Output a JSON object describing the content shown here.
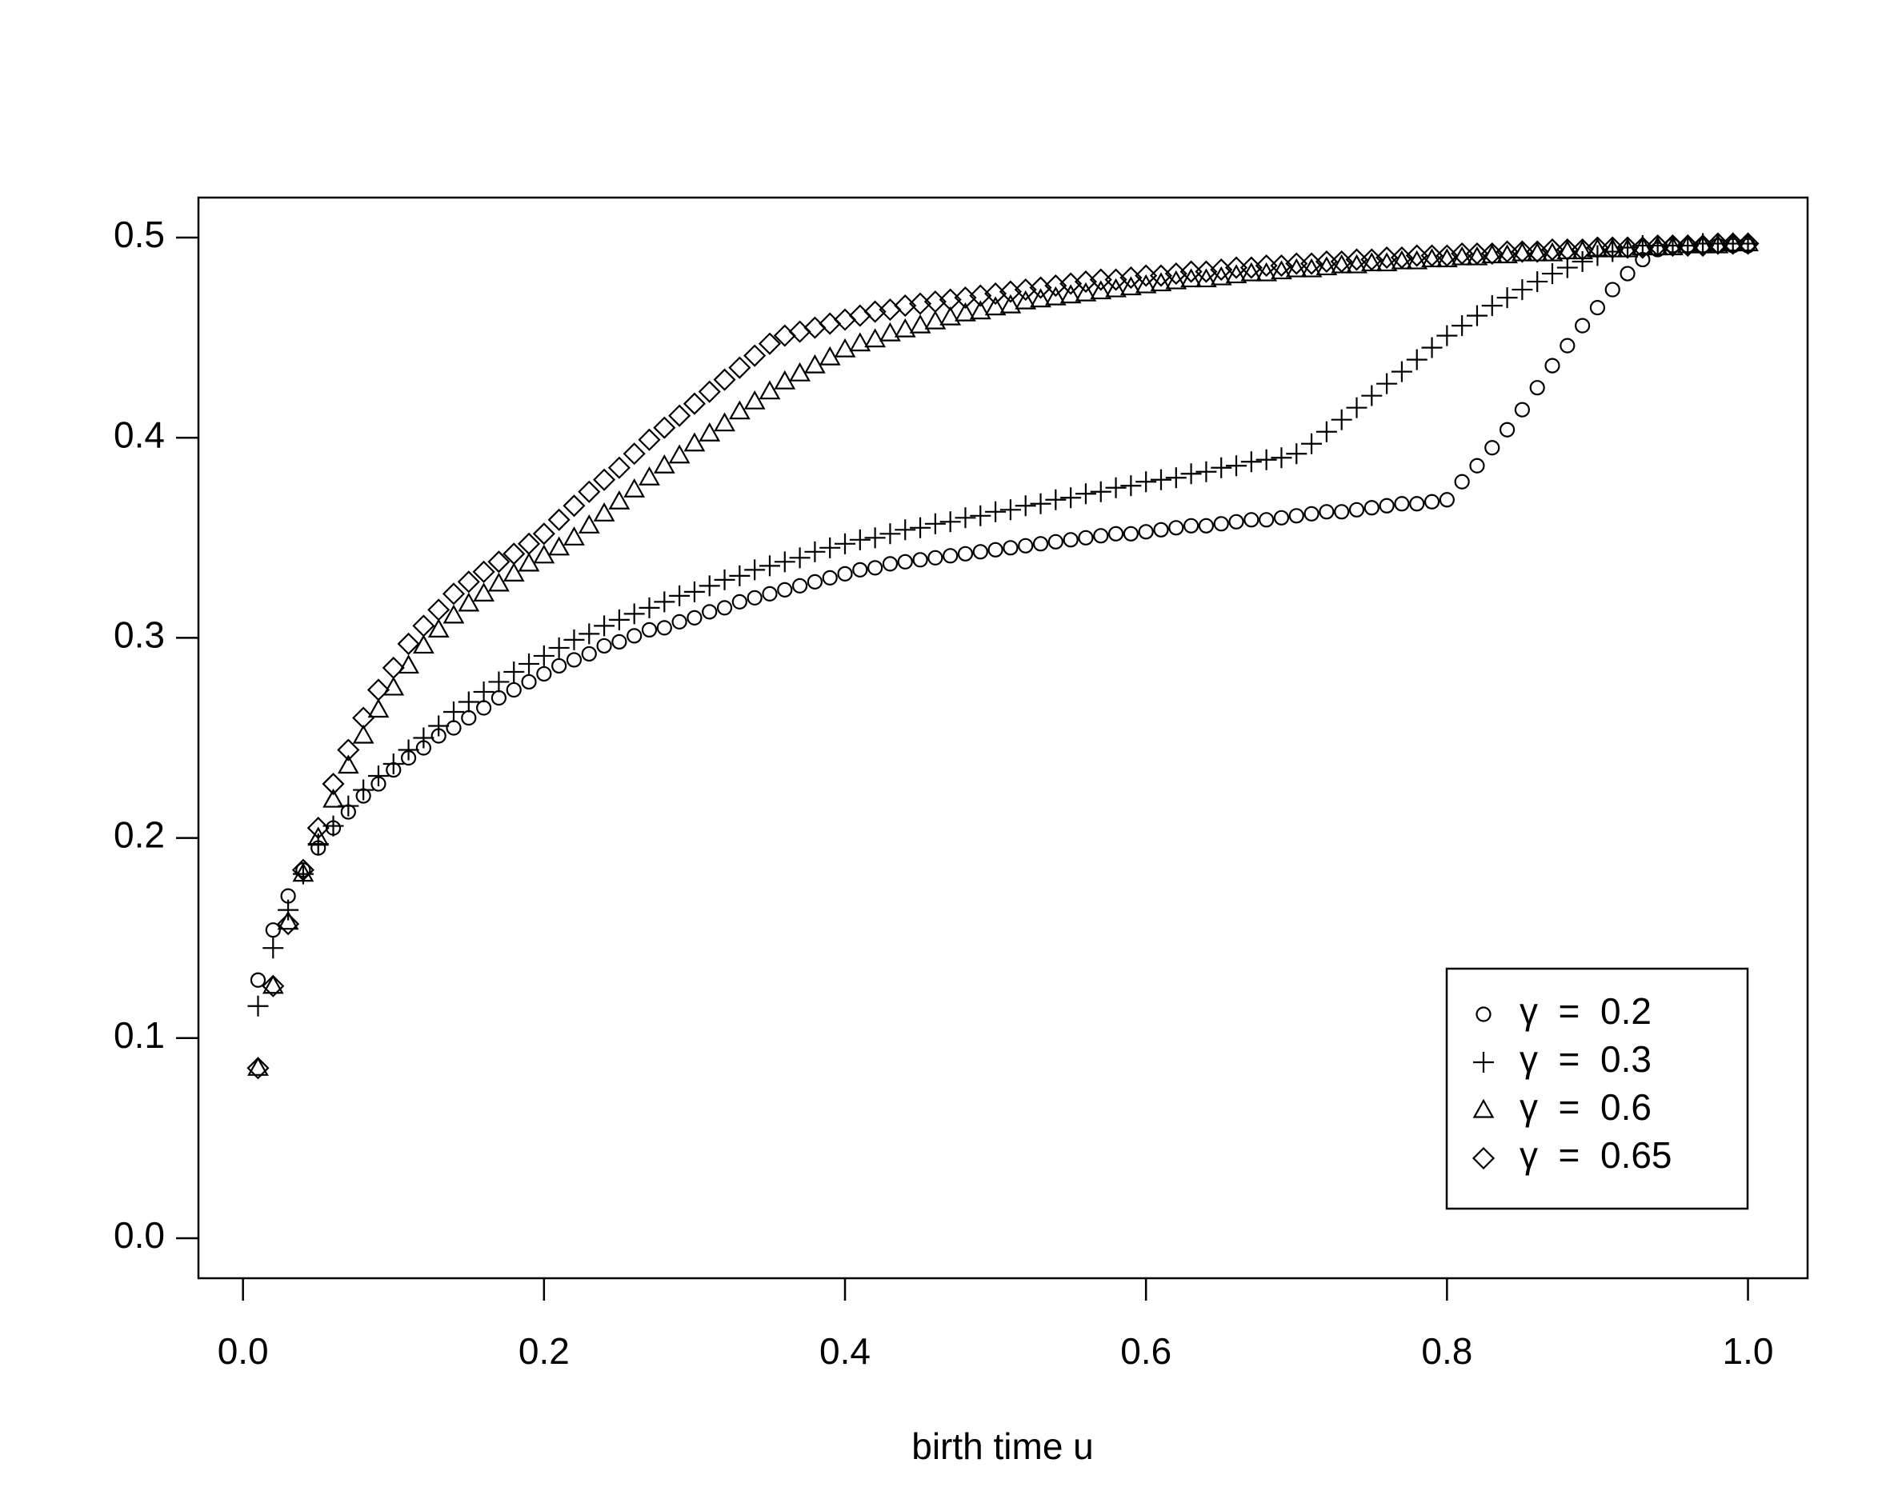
{
  "chart_data": {
    "type": "scatter",
    "x_label": "birth time u",
    "xlim": [
      -0.0296,
      1.0396
    ],
    "ylim": [
      -0.02,
      0.52
    ],
    "xticks": [
      {
        "value": 0,
        "label": "0.0"
      },
      0.2,
      0.4,
      0.6,
      0.8,
      {
        "value": 1,
        "label": "1.0"
      }
    ],
    "yticks": [
      {
        "value": 0,
        "label": "0.0"
      },
      0.1,
      0.2,
      0.3,
      0.4,
      0.5
    ],
    "legend_position": "bottomright",
    "x": [
      0.01,
      0.02,
      0.03,
      0.04,
      0.05,
      0.06,
      0.07,
      0.08,
      0.09,
      0.1,
      0.11,
      0.12,
      0.13,
      0.14,
      0.15,
      0.16,
      0.17,
      0.18,
      0.19,
      0.2,
      0.21,
      0.22,
      0.23,
      0.24,
      0.25,
      0.26,
      0.27,
      0.28,
      0.29,
      0.3,
      0.31,
      0.32,
      0.33,
      0.34,
      0.35,
      0.36,
      0.37,
      0.38,
      0.39,
      0.4,
      0.41,
      0.42,
      0.43,
      0.44,
      0.45,
      0.46,
      0.47,
      0.48,
      0.49,
      0.5,
      0.51,
      0.52,
      0.53,
      0.54,
      0.55,
      0.56,
      0.57,
      0.58,
      0.59,
      0.6,
      0.61,
      0.62,
      0.63,
      0.64,
      0.65,
      0.66,
      0.67,
      0.68,
      0.69,
      0.7,
      0.71,
      0.72,
      0.73,
      0.74,
      0.75,
      0.76,
      0.77,
      0.78,
      0.79,
      0.8,
      0.81,
      0.82,
      0.83,
      0.84,
      0.85,
      0.86,
      0.87,
      0.88,
      0.89,
      0.9,
      0.91,
      0.92,
      0.93,
      0.94,
      0.95,
      0.96,
      0.97,
      0.98,
      0.99,
      1.0
    ],
    "series": [
      {
        "name": "γ  =  0.2",
        "marker": "circle",
        "color": "#000000",
        "values": [
          0.129,
          0.154,
          0.171,
          0.184,
          0.195,
          0.205,
          0.213,
          0.221,
          0.227,
          0.234,
          0.24,
          0.245,
          0.251,
          0.255,
          0.26,
          0.265,
          0.27,
          0.274,
          0.278,
          0.282,
          0.286,
          0.289,
          0.292,
          0.296,
          0.298,
          0.301,
          0.304,
          0.305,
          0.308,
          0.31,
          0.313,
          0.315,
          0.318,
          0.32,
          0.322,
          0.324,
          0.326,
          0.328,
          0.33,
          0.332,
          0.334,
          0.335,
          0.337,
          0.338,
          0.339,
          0.34,
          0.341,
          0.342,
          0.343,
          0.344,
          0.345,
          0.346,
          0.347,
          0.348,
          0.349,
          0.35,
          0.351,
          0.352,
          0.352,
          0.353,
          0.354,
          0.355,
          0.356,
          0.356,
          0.357,
          0.358,
          0.359,
          0.359,
          0.36,
          0.361,
          0.362,
          0.363,
          0.363,
          0.364,
          0.365,
          0.366,
          0.367,
          0.367,
          0.368,
          0.369,
          0.378,
          0.386,
          0.395,
          0.404,
          0.414,
          0.425,
          0.436,
          0.446,
          0.456,
          0.465,
          0.474,
          0.482,
          0.489,
          0.494,
          0.496,
          0.496,
          0.496,
          0.496,
          0.496,
          0.496
        ]
      },
      {
        "name": "γ  =  0.3",
        "marker": "plus",
        "color": "#000000",
        "values": [
          0.116,
          0.145,
          0.164,
          0.182,
          0.197,
          0.206,
          0.216,
          0.224,
          0.231,
          0.237,
          0.244,
          0.25,
          0.256,
          0.263,
          0.268,
          0.273,
          0.278,
          0.283,
          0.287,
          0.291,
          0.295,
          0.299,
          0.302,
          0.306,
          0.309,
          0.312,
          0.315,
          0.318,
          0.321,
          0.323,
          0.326,
          0.329,
          0.331,
          0.334,
          0.336,
          0.338,
          0.34,
          0.343,
          0.345,
          0.347,
          0.349,
          0.35,
          0.352,
          0.354,
          0.355,
          0.357,
          0.358,
          0.36,
          0.361,
          0.363,
          0.364,
          0.366,
          0.367,
          0.369,
          0.37,
          0.372,
          0.373,
          0.375,
          0.376,
          0.378,
          0.379,
          0.38,
          0.382,
          0.383,
          0.385,
          0.386,
          0.388,
          0.389,
          0.39,
          0.392,
          0.397,
          0.403,
          0.409,
          0.415,
          0.421,
          0.427,
          0.433,
          0.439,
          0.445,
          0.451,
          0.456,
          0.461,
          0.466,
          0.47,
          0.474,
          0.478,
          0.482,
          0.485,
          0.488,
          0.491,
          0.493,
          0.495,
          0.496,
          0.496,
          0.496,
          0.496,
          0.497,
          0.497,
          0.497,
          0.497
        ]
      },
      {
        "name": "γ  =  0.6",
        "marker": "triangle",
        "color": "#000000",
        "values": [
          0.085,
          0.126,
          0.158,
          0.182,
          0.2,
          0.219,
          0.236,
          0.251,
          0.264,
          0.275,
          0.286,
          0.296,
          0.304,
          0.311,
          0.317,
          0.322,
          0.327,
          0.332,
          0.337,
          0.341,
          0.345,
          0.35,
          0.356,
          0.362,
          0.368,
          0.374,
          0.38,
          0.386,
          0.391,
          0.397,
          0.402,
          0.407,
          0.413,
          0.418,
          0.423,
          0.428,
          0.432,
          0.436,
          0.44,
          0.444,
          0.447,
          0.449,
          0.452,
          0.454,
          0.456,
          0.458,
          0.46,
          0.462,
          0.463,
          0.465,
          0.466,
          0.468,
          0.469,
          0.47,
          0.471,
          0.472,
          0.473,
          0.474,
          0.475,
          0.476,
          0.477,
          0.478,
          0.479,
          0.479,
          0.48,
          0.481,
          0.482,
          0.482,
          0.483,
          0.484,
          0.484,
          0.485,
          0.486,
          0.486,
          0.487,
          0.487,
          0.488,
          0.488,
          0.489,
          0.489,
          0.49,
          0.49,
          0.491,
          0.491,
          0.492,
          0.492,
          0.492,
          0.493,
          0.493,
          0.494,
          0.494,
          0.494,
          0.495,
          0.495,
          0.495,
          0.496,
          0.496,
          0.496,
          0.497,
          0.497
        ]
      },
      {
        "name": "γ  =  0.65",
        "marker": "diamond",
        "color": "#000000",
        "values": [
          0.085,
          0.126,
          0.157,
          0.184,
          0.205,
          0.227,
          0.244,
          0.26,
          0.274,
          0.285,
          0.297,
          0.306,
          0.314,
          0.322,
          0.328,
          0.333,
          0.338,
          0.342,
          0.347,
          0.352,
          0.359,
          0.366,
          0.373,
          0.379,
          0.385,
          0.392,
          0.399,
          0.405,
          0.411,
          0.417,
          0.423,
          0.429,
          0.435,
          0.441,
          0.447,
          0.451,
          0.453,
          0.455,
          0.457,
          0.459,
          0.461,
          0.463,
          0.464,
          0.466,
          0.467,
          0.468,
          0.469,
          0.47,
          0.471,
          0.472,
          0.473,
          0.474,
          0.475,
          0.476,
          0.477,
          0.478,
          0.479,
          0.479,
          0.48,
          0.481,
          0.481,
          0.482,
          0.483,
          0.483,
          0.484,
          0.485,
          0.485,
          0.486,
          0.486,
          0.487,
          0.487,
          0.488,
          0.488,
          0.489,
          0.489,
          0.49,
          0.49,
          0.491,
          0.491,
          0.491,
          0.492,
          0.492,
          0.492,
          0.493,
          0.493,
          0.493,
          0.494,
          0.494,
          0.494,
          0.495,
          0.495,
          0.495,
          0.495,
          0.496,
          0.496,
          0.496,
          0.496,
          0.497,
          0.497,
          0.497
        ]
      }
    ]
  }
}
